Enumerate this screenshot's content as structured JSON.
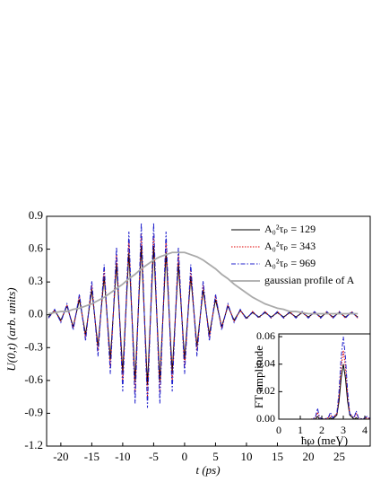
{
  "chart_data": [
    {
      "type": "line",
      "xlabel": "t (ps)",
      "ylabel": "U(0,t) (arb. units)",
      "x": [
        -22,
        -21,
        -20,
        -19,
        -18,
        -17,
        -16,
        -15,
        -14,
        -13,
        -12,
        -11,
        -10,
        -9,
        -8,
        -7,
        -6,
        -5,
        -4,
        -3,
        -2,
        -1,
        0,
        1,
        2,
        3,
        4,
        5,
        6,
        7,
        8,
        9,
        10,
        11,
        12,
        13,
        14,
        15,
        16,
        17,
        18,
        19,
        20,
        21,
        22,
        23,
        24,
        25,
        26,
        27,
        28
      ],
      "xlim": [
        -22.3,
        30
      ],
      "xticks": [
        -20,
        -15,
        -10,
        -5,
        0,
        5,
        10,
        15,
        20,
        25
      ],
      "ylim": [
        -1.2,
        0.9
      ],
      "yticks": [
        0.9,
        0.6,
        0.3,
        {
          "value": 0,
          "label": "0.0"
        },
        -0.3,
        -0.6,
        -0.9,
        -1.2
      ],
      "series": [
        {
          "name": "A₀²τₚ = 129",
          "color": "#000000",
          "linestyle": "solid",
          "values": [
            -0.02,
            0.04,
            -0.05,
            0.08,
            -0.11,
            0.14,
            -0.18,
            0.23,
            -0.29,
            0.35,
            -0.41,
            0.47,
            -0.53,
            0.57,
            -0.61,
            0.63,
            -0.64,
            0.63,
            -0.61,
            0.57,
            -0.53,
            0.47,
            -0.41,
            0.35,
            -0.29,
            0.23,
            -0.18,
            0.14,
            -0.11,
            0.08,
            -0.05,
            0.04,
            -0.03,
            0.02,
            -0.02,
            0.02,
            -0.02,
            0.02,
            -0.02,
            0.02,
            -0.02,
            0.02,
            -0.02,
            0.02,
            -0.02,
            0.02,
            -0.02,
            0.02,
            -0.02,
            0.02,
            -0.02
          ]
        },
        {
          "name": "A₀²τₚ = 343",
          "color": "#e00000",
          "linestyle": "dotted",
          "values": [
            -0.03,
            0.04,
            -0.06,
            0.09,
            -0.12,
            0.17,
            -0.21,
            0.27,
            -0.33,
            0.4,
            -0.48,
            0.55,
            -0.62,
            0.67,
            -0.71,
            0.74,
            -0.75,
            0.74,
            -0.71,
            0.67,
            -0.62,
            0.55,
            -0.48,
            0.4,
            -0.33,
            0.27,
            -0.21,
            0.17,
            -0.12,
            0.09,
            -0.06,
            0.04,
            -0.04,
            0.03,
            -0.03,
            0.03,
            -0.03,
            0.03,
            -0.03,
            0.03,
            -0.03,
            0.03,
            -0.03,
            0.03,
            -0.03,
            0.03,
            -0.03,
            0.03,
            -0.03,
            0.03,
            -0.03
          ]
        },
        {
          "name": "A₀²τₚ = 969",
          "color": "#2020cc",
          "linestyle": "dashdot",
          "values": [
            -0.03,
            0.05,
            -0.07,
            0.1,
            -0.14,
            0.19,
            -0.24,
            0.31,
            -0.38,
            0.46,
            -0.54,
            0.62,
            -0.7,
            0.76,
            -0.81,
            0.84,
            -0.85,
            0.84,
            -0.81,
            0.76,
            -0.7,
            0.62,
            -0.54,
            0.46,
            -0.38,
            0.31,
            -0.24,
            0.19,
            -0.14,
            0.1,
            -0.07,
            0.05,
            -0.04,
            0.03,
            -0.03,
            0.03,
            -0.03,
            0.03,
            -0.03,
            0.03,
            -0.03,
            0.03,
            -0.03,
            0.03,
            -0.03,
            0.03,
            -0.03,
            0.03,
            -0.03,
            0.03,
            -0.03
          ]
        },
        {
          "name": "gaussian profile of A",
          "color": "#aaaaaa",
          "linestyle": "wide",
          "values": [
            0.01,
            0.02,
            0.03,
            0.03,
            0.05,
            0.06,
            0.08,
            0.1,
            0.13,
            0.16,
            0.2,
            0.24,
            0.28,
            0.33,
            0.37,
            0.42,
            0.46,
            0.5,
            0.53,
            0.55,
            0.57,
            0.57,
            0.57,
            0.55,
            0.53,
            0.5,
            0.46,
            0.42,
            0.37,
            0.33,
            0.28,
            0.24,
            0.2,
            0.16,
            0.13,
            0.1,
            0.08,
            0.06,
            0.05,
            0.03,
            0.03,
            0.02,
            0.01,
            0.01,
            0.01,
            0.01,
            0.01,
            0.01,
            0.01,
            0.01,
            0.01
          ]
        }
      ]
    },
    {
      "type": "line",
      "xlabel": "ħω (meV)",
      "ylabel": "FT amplitude",
      "x": [
        0,
        0.5,
        1,
        1.5,
        1.7,
        1.8,
        1.9,
        2.1,
        2.3,
        2.4,
        2.5,
        2.7,
        2.8,
        2.9,
        3.0,
        3.1,
        3.2,
        3.3,
        3.5,
        3.6,
        3.7,
        3.9,
        4.1,
        4.3
      ],
      "xlim": [
        0,
        4.25
      ],
      "xticks": [
        0,
        1,
        2,
        3,
        4
      ],
      "ylim": [
        0,
        0.062
      ],
      "yticks": [
        {
          "value": 0,
          "label": "0.00"
        },
        {
          "value": 0.02,
          "label": "0.02"
        },
        {
          "value": 0.04,
          "label": "0.04"
        },
        {
          "value": 0.06,
          "label": "0.06"
        }
      ],
      "series": [
        {
          "color": "#000000",
          "linestyle": "solid",
          "values": [
            0,
            0,
            0,
            0,
            0,
            0.002,
            0,
            0,
            0,
            0.001,
            0,
            0.003,
            0.013,
            0.03,
            0.04,
            0.03,
            0.013,
            0.003,
            0,
            0.001,
            0,
            0,
            0,
            0
          ]
        },
        {
          "color": "#e00000",
          "linestyle": "dotted",
          "values": [
            0,
            0,
            0,
            0,
            0.001,
            0.005,
            0.001,
            0,
            0.001,
            0.003,
            0.001,
            0.004,
            0.017,
            0.038,
            0.05,
            0.038,
            0.017,
            0.004,
            0.001,
            0.004,
            0.001,
            0,
            0.001,
            0
          ]
        },
        {
          "color": "#2020cc",
          "linestyle": "dashdot",
          "values": [
            0,
            0,
            0,
            0,
            0.001,
            0.008,
            0.001,
            0,
            0.001,
            0.005,
            0.001,
            0.004,
            0.02,
            0.045,
            0.06,
            0.045,
            0.02,
            0.004,
            0.001,
            0.006,
            0.001,
            0,
            0.002,
            0
          ]
        }
      ]
    }
  ]
}
